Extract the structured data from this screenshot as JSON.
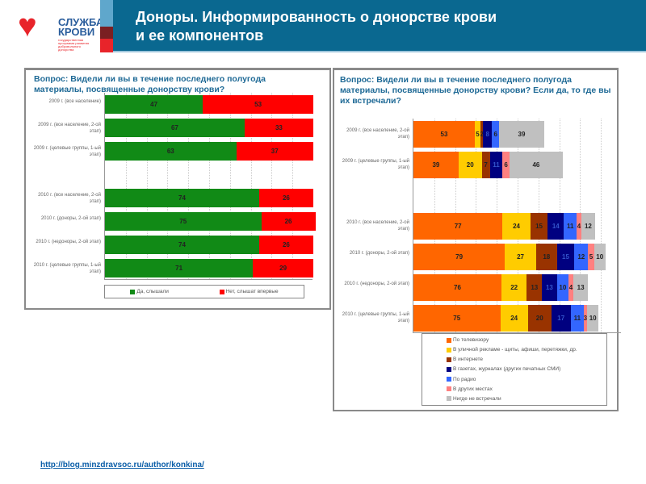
{
  "logo": {
    "title_line1": "СЛУЖБА",
    "title_line2": "КРОВИ",
    "subtitle": "государственная программа развития добровольного донорства"
  },
  "header": {
    "title_line1": "Доноры. Информированность о донорстве крови",
    "title_line2": "и ее компонентов"
  },
  "footer": {
    "url": "http://blog.minzdravsoc.ru/author/konkina/"
  },
  "chart_data": [
    {
      "type": "bar",
      "stacked": "horizontal-100",
      "title": "Вопрос: Видели ли вы в течение последнего полугода материалы, посвященные донорству крови?",
      "categories": [
        "2009 г. (все население)",
        "2009 г. (все население, 2-ой этап)",
        "2009 г. (целевые группы, 1-ый этап)",
        "",
        "2010 г. (все население, 2-ой этап)",
        "2010 г. (доноры, 2-ой этап)",
        "2010 г. (недоноры, 2-ой этап)",
        "2010 г. (целевые группы, 1-ый этап)"
      ],
      "series": [
        {
          "name": "Да, слышали",
          "color": "#118a16",
          "values": [
            47,
            67,
            63,
            null,
            74,
            75,
            74,
            71
          ]
        },
        {
          "name": "Нет, слышат впервые",
          "color": "#ff0000",
          "values": [
            53,
            33,
            37,
            null,
            26,
            26,
            26,
            29
          ]
        }
      ],
      "xlim": [
        0,
        100
      ],
      "legend": "bottom"
    },
    {
      "type": "bar",
      "stacked": "horizontal",
      "title": "Вопрос: Видели ли вы в течение последнего полугода материалы, посвященные донорству крови? Если да, то где вы их встречали?",
      "categories": [
        "2009 г. (все население, 2-ой этап)",
        "2009 г. (целевые группы, 1-ый этап)",
        "",
        "2010 г. (все население, 2-ой этап)",
        "2010 г. (доноры, 2-ой этап)",
        "2010 г. (недоноры, 2-ой этап)",
        "2010 г. (целевые группы, 1-ый этап)"
      ],
      "series": [
        {
          "name": "По телевизору",
          "color": "#ff6600",
          "values": [
            53,
            39,
            null,
            77,
            79,
            76,
            75
          ]
        },
        {
          "name": "В уличной рекламе - щиты, афиши, перетяжки, др.",
          "color": "#ffcc00",
          "values": [
            5,
            20,
            null,
            24,
            27,
            22,
            24
          ]
        },
        {
          "name": "В интернете",
          "color": "#993300",
          "values": [
            2,
            7,
            null,
            15,
            18,
            13,
            20
          ]
        },
        {
          "name": "В газетах, журналах (других печатных СМИ)",
          "color": "#000080",
          "values": [
            8,
            11,
            null,
            14,
            15,
            13,
            17
          ]
        },
        {
          "name": "По радио",
          "color": "#3366ff",
          "values": [
            6,
            0,
            null,
            11,
            12,
            10,
            11
          ]
        },
        {
          "name": "В других местах",
          "color": "#ff8080",
          "values": [
            0,
            6,
            null,
            4,
            5,
            4,
            3
          ]
        },
        {
          "name": "Нигде не встречали",
          "color": "#c0c0c0",
          "values": [
            39,
            46,
            null,
            12,
            10,
            13,
            10
          ]
        }
      ],
      "xlim": [
        0,
        180
      ],
      "legend": "bottom"
    }
  ]
}
